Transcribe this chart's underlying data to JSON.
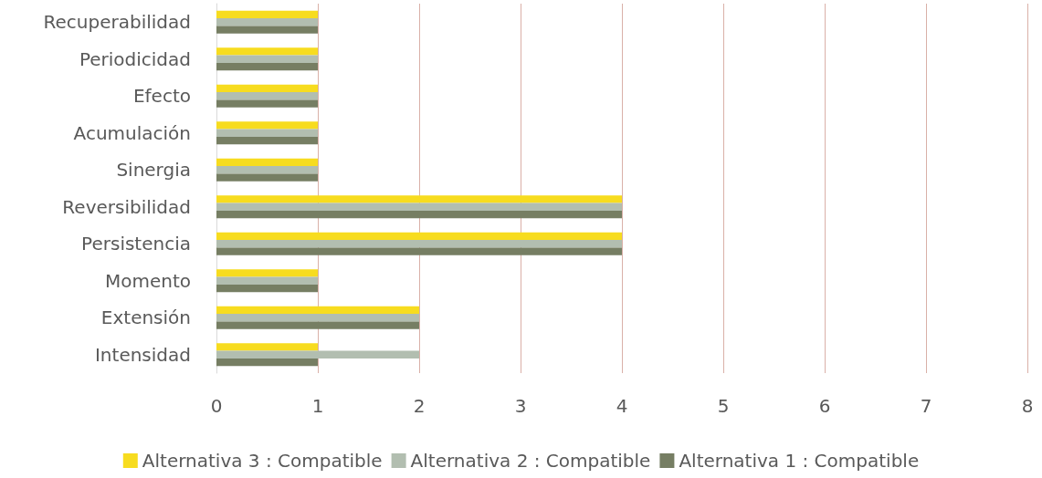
{
  "chart_data": {
    "type": "bar",
    "orientation": "horizontal",
    "categories": [
      "Recuperabilidad",
      "Periodicidad",
      "Efecto",
      "Acumulación",
      "Sinergia",
      "Reversibilidad",
      "Persistencia",
      "Momento",
      "Extensión",
      "Intensidad"
    ],
    "series": [
      {
        "name": "Alternativa 3 : Compatible",
        "color": "#f7dc1f",
        "values": [
          1,
          1,
          1,
          1,
          1,
          4,
          4,
          1,
          2,
          1
        ]
      },
      {
        "name": "Alternativa 2 : Compatible",
        "color": "#b2beb0",
        "values": [
          1,
          1,
          1,
          1,
          1,
          4,
          4,
          1,
          2,
          2
        ]
      },
      {
        "name": "Alternativa 1 : Compatible",
        "color": "#767e63",
        "values": [
          1,
          1,
          1,
          1,
          1,
          4,
          4,
          1,
          2,
          1
        ]
      }
    ],
    "xlim": [
      0,
      8
    ],
    "xticks": [
      0,
      1,
      2,
      3,
      4,
      5,
      6,
      7,
      8
    ],
    "grid": "x",
    "legend": "bottom"
  }
}
